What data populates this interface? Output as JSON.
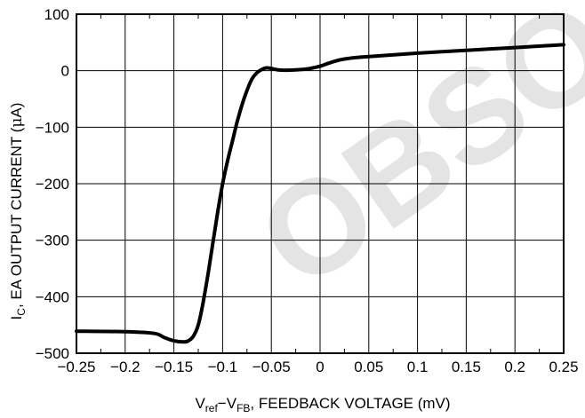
{
  "chart_data": {
    "type": "line",
    "xlim": [
      -0.25,
      0.25
    ],
    "ylim": [
      -500,
      100
    ],
    "x_ticks": [
      -0.25,
      -0.2,
      -0.15,
      -0.1,
      -0.05,
      0,
      0.05,
      0.1,
      0.15,
      0.2,
      0.25
    ],
    "x_tick_labels": [
      "−0.25",
      "−0.2",
      "−0.15",
      "−0.1",
      "−0.05",
      "0",
      "0.05",
      "0.1",
      "0.15",
      "0.2",
      "0.25"
    ],
    "y_ticks": [
      -500,
      -400,
      -300,
      -200,
      -100,
      0,
      100
    ],
    "y_tick_labels": [
      "−500",
      "−400",
      "−300",
      "−200",
      "−100",
      "0",
      "100"
    ],
    "x_minor_ticks": [
      -0.225,
      -0.175,
      -0.125,
      -0.075,
      -0.025,
      0.025,
      0.075,
      0.125,
      0.175,
      0.225
    ],
    "grid": true,
    "xlabel": {
      "part1": "V",
      "sub1": "ref",
      "part2": "−V",
      "sub2": "FB",
      "part3": ", FEEDBACK VOLTAGE (mV)"
    },
    "ylabel": {
      "part1": "I",
      "sub1": "C",
      "part2": ", EA OUTPUT CURRENT (",
      "mu": "μ",
      "part3": "A)"
    },
    "watermark": "OBSOLETE  OBSOLETE DEVICE",
    "series": [
      {
        "x": [
          -0.25,
          -0.2,
          -0.17,
          -0.16,
          -0.15,
          -0.14,
          -0.135,
          -0.13,
          -0.125,
          -0.12,
          -0.115,
          -0.11,
          -0.105,
          -0.1,
          -0.095,
          -0.09,
          -0.085,
          -0.08,
          -0.075,
          -0.07,
          -0.065,
          -0.06,
          -0.055,
          -0.05,
          -0.045,
          -0.04,
          -0.03,
          -0.02,
          -0.01,
          0,
          0.01,
          0.02,
          0.03,
          0.05,
          0.1,
          0.15,
          0.2,
          0.25
        ],
        "y": [
          -461,
          -462,
          -465,
          -472,
          -478,
          -480,
          -478,
          -470,
          -450,
          -410,
          -360,
          -305,
          -250,
          -200,
          -160,
          -125,
          -90,
          -60,
          -35,
          -15,
          -4,
          2,
          5,
          4,
          2,
          1,
          1,
          2,
          4,
          8,
          14,
          19,
          22,
          25,
          31,
          36,
          41,
          46
        ]
      }
    ]
  }
}
